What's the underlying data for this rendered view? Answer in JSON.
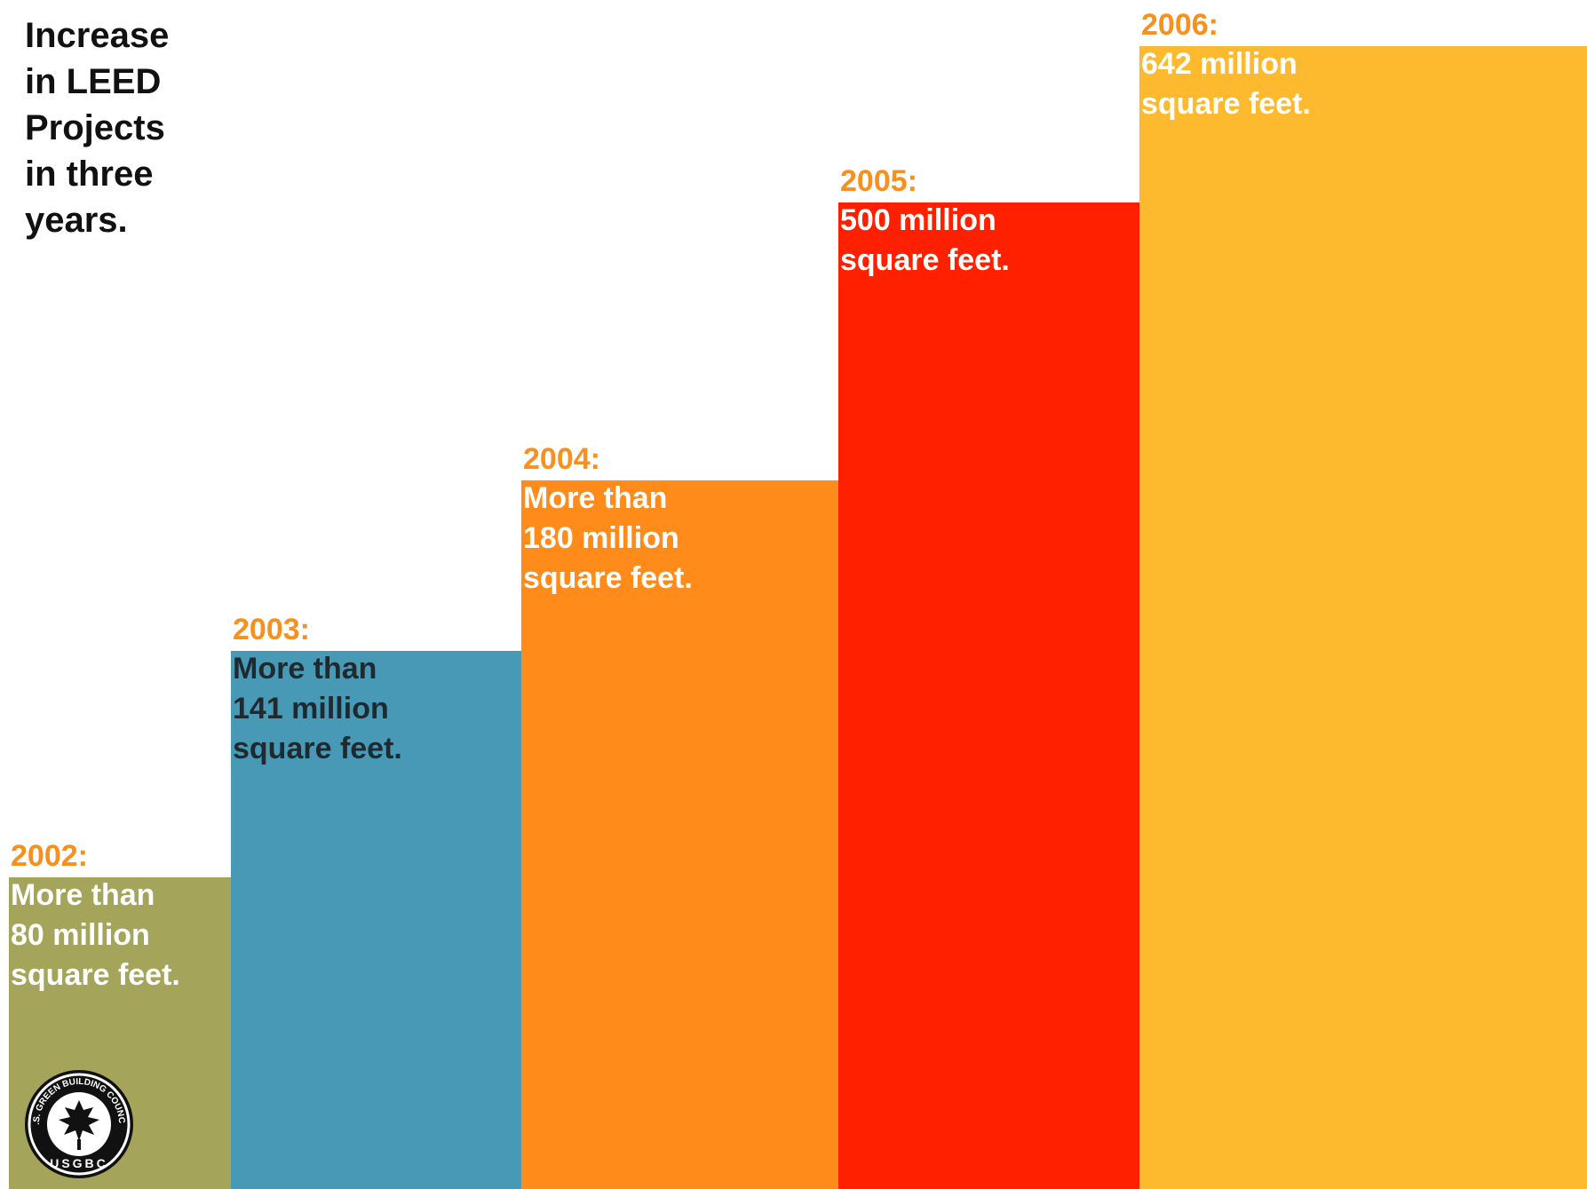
{
  "title_lines": [
    "Increase",
    "in LEED",
    "Projects",
    "in three",
    "years."
  ],
  "chart_data": {
    "type": "bar",
    "title": "Increase in LEED Projects in three years.",
    "categories": [
      "2002",
      "2003",
      "2004",
      "2005",
      "2006"
    ],
    "values": [
      80,
      141,
      180,
      500,
      642
    ],
    "unit": "million square feet",
    "data_labels": [
      {
        "year": "2002:",
        "lines": [
          "More than",
          "80 million",
          "square feet."
        ]
      },
      {
        "year": "2003:",
        "lines": [
          "More than",
          "141 million",
          "square feet."
        ]
      },
      {
        "year": "2004:",
        "lines": [
          "More than",
          "180 million",
          "square feet."
        ]
      },
      {
        "year": "2005:",
        "lines": [
          "500 million",
          "square feet."
        ]
      },
      {
        "year": "2006:",
        "lines": [
          "642 million",
          "square feet."
        ]
      }
    ],
    "bar_colors": [
      "#A4A45A",
      "#4899B6",
      "#FF8C1A",
      "#FF2000",
      "#FDBA2E"
    ],
    "year_label_color": "#F7901E",
    "value_label_colors": [
      "#ffffff",
      "#1F2A30",
      "#ffffff",
      "#ffffff",
      "#ffffff"
    ],
    "axes_shown": false,
    "gridlines": false
  },
  "logo": {
    "ring_text": "U.S. GREEN BUILDING COUNCIL",
    "bottom_text": "USGBC",
    "icon": "leaf-cluster-icon"
  }
}
